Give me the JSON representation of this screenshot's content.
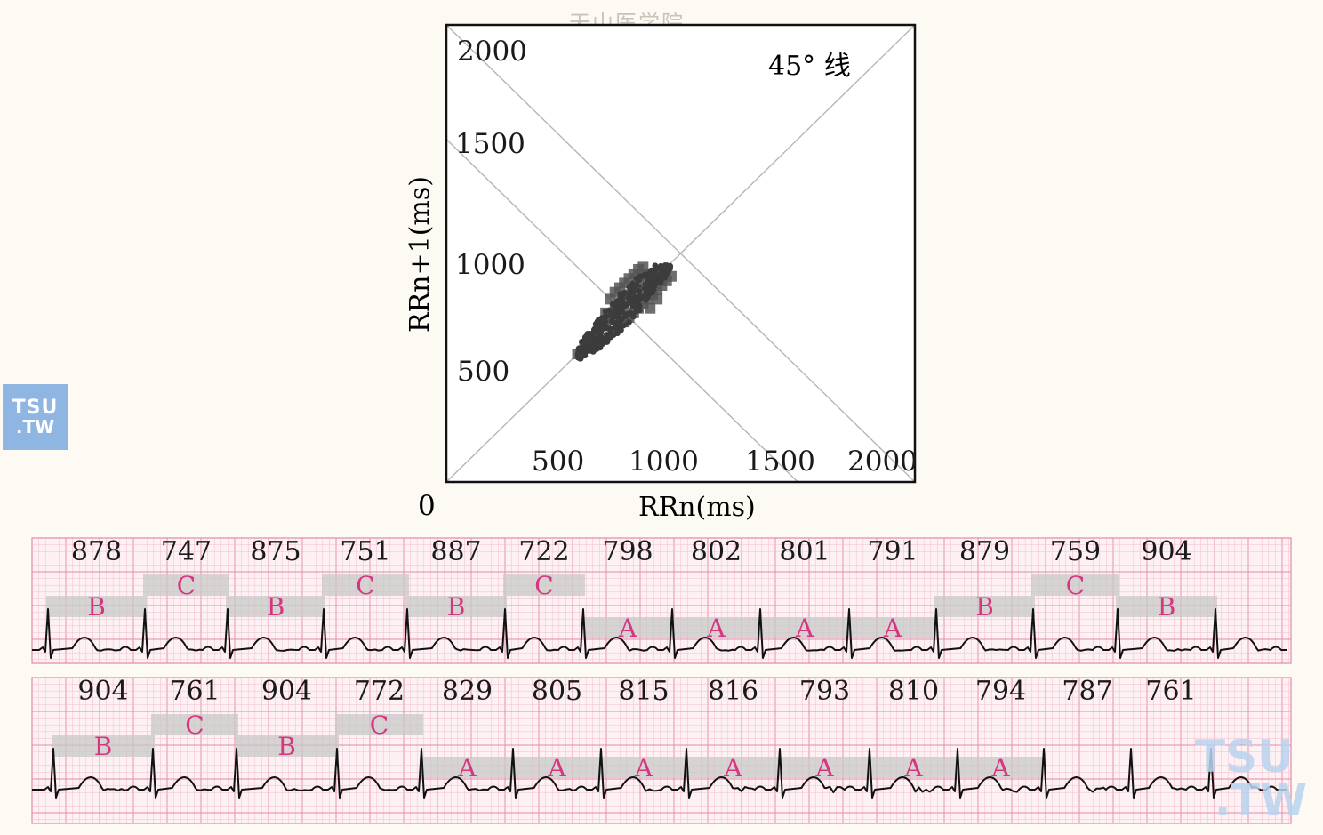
{
  "watermark_top": "天山医学院",
  "logo": {
    "line1": "TSU",
    "line2": ".TW"
  },
  "watermark_corner": {
    "line1": "TSU",
    "line2": ".TW"
  },
  "chart_data": [
    {
      "type": "scatter",
      "title": "",
      "xlabel": "RRn(ms)",
      "ylabel": "RRn+1(ms)",
      "xlim": [
        0,
        2000
      ],
      "ylim": [
        0,
        2000
      ],
      "origin_label": "0",
      "x_ticks": [
        "500",
        "1000",
        "1500",
        "2000"
      ],
      "y_ticks": [
        "500",
        "1000",
        "1500",
        "2000"
      ],
      "annotation": "45° 线",
      "lines": [
        {
          "name": "45° 线",
          "from": [
            0,
            0
          ],
          "to": [
            2000,
            2000
          ]
        },
        {
          "from": [
            0,
            1500
          ],
          "to": [
            1500,
            0
          ]
        },
        {
          "from": [
            0,
            2000
          ],
          "to": [
            2000,
            0
          ]
        }
      ],
      "cluster": {
        "center_x": 790,
        "center_y": 790,
        "x_range": [
          560,
          960
        ],
        "y_range": [
          540,
          950
        ],
        "sample_points": [
          [
            560,
            560
          ],
          [
            590,
            600
          ],
          [
            620,
            630
          ],
          [
            650,
            660
          ],
          [
            680,
            700
          ],
          [
            700,
            720
          ],
          [
            720,
            760
          ],
          [
            740,
            780
          ],
          [
            760,
            800
          ],
          [
            780,
            820
          ],
          [
            800,
            850
          ],
          [
            820,
            880
          ],
          [
            840,
            900
          ],
          [
            860,
            910
          ],
          [
            700,
            800
          ],
          [
            720,
            830
          ],
          [
            740,
            850
          ],
          [
            760,
            870
          ],
          [
            780,
            890
          ],
          [
            800,
            910
          ],
          [
            820,
            930
          ],
          [
            840,
            940
          ],
          [
            780,
            720
          ],
          [
            800,
            740
          ],
          [
            820,
            760
          ],
          [
            840,
            780
          ],
          [
            860,
            800
          ],
          [
            880,
            820
          ],
          [
            900,
            840
          ],
          [
            920,
            860
          ],
          [
            940,
            880
          ],
          [
            960,
            900
          ],
          [
            760,
            760
          ],
          [
            800,
            800
          ],
          [
            840,
            840
          ],
          [
            760,
            700
          ],
          [
            740,
            720
          ],
          [
            870,
            760
          ],
          [
            900,
            800
          ],
          [
            680,
            740
          ]
        ]
      }
    },
    {
      "type": "line",
      "title": "",
      "xlabel": "",
      "ylabel": "",
      "strip": 1,
      "rr_intervals_ms": [
        "878",
        "747",
        "875",
        "751",
        "887",
        "722",
        "798",
        "802",
        "801",
        "791",
        "879",
        "759",
        "904"
      ],
      "segment_labels": [
        {
          "label": "B",
          "start_beat": 0
        },
        {
          "label": "C",
          "start_beat": 1
        },
        {
          "label": "B",
          "start_beat": 2
        },
        {
          "label": "C",
          "start_beat": 3
        },
        {
          "label": "B",
          "start_beat": 4
        },
        {
          "label": "C",
          "start_beat": 5
        },
        {
          "label": "A",
          "start_beat": 6
        },
        {
          "label": "A",
          "start_beat": 7
        },
        {
          "label": "A",
          "start_beat": 8
        },
        {
          "label": "A",
          "start_beat": 9
        },
        {
          "label": "B",
          "start_beat": 10
        },
        {
          "label": "C",
          "start_beat": 11
        },
        {
          "label": "B",
          "start_beat": 12
        }
      ]
    },
    {
      "type": "line",
      "title": "",
      "xlabel": "",
      "ylabel": "",
      "strip": 2,
      "rr_intervals_ms": [
        "904",
        "761",
        "904",
        "772",
        "829",
        "805",
        "815",
        "816",
        "793",
        "810",
        "794",
        "787",
        "761"
      ],
      "segment_labels": [
        {
          "label": "B",
          "start_beat": 0
        },
        {
          "label": "C",
          "start_beat": 1
        },
        {
          "label": "B",
          "start_beat": 2
        },
        {
          "label": "C",
          "start_beat": 3
        },
        {
          "label": "A",
          "start_beat": 4
        },
        {
          "label": "A",
          "start_beat": 5
        },
        {
          "label": "A",
          "start_beat": 6
        },
        {
          "label": "A",
          "start_beat": 7
        },
        {
          "label": "A",
          "start_beat": 8
        },
        {
          "label": "A",
          "start_beat": 9
        },
        {
          "label": "A",
          "start_beat": 10
        }
      ]
    }
  ],
  "colors": {
    "label_magenta": "#d6357f",
    "grid_pink": "#f0b8c8",
    "grid_pink_major": "#e48aa6",
    "ecg_trace": "#111111",
    "band_gray": "#c8c8c8",
    "scatter_cluster": "#555555",
    "diagonal": "#b5b5b5"
  }
}
